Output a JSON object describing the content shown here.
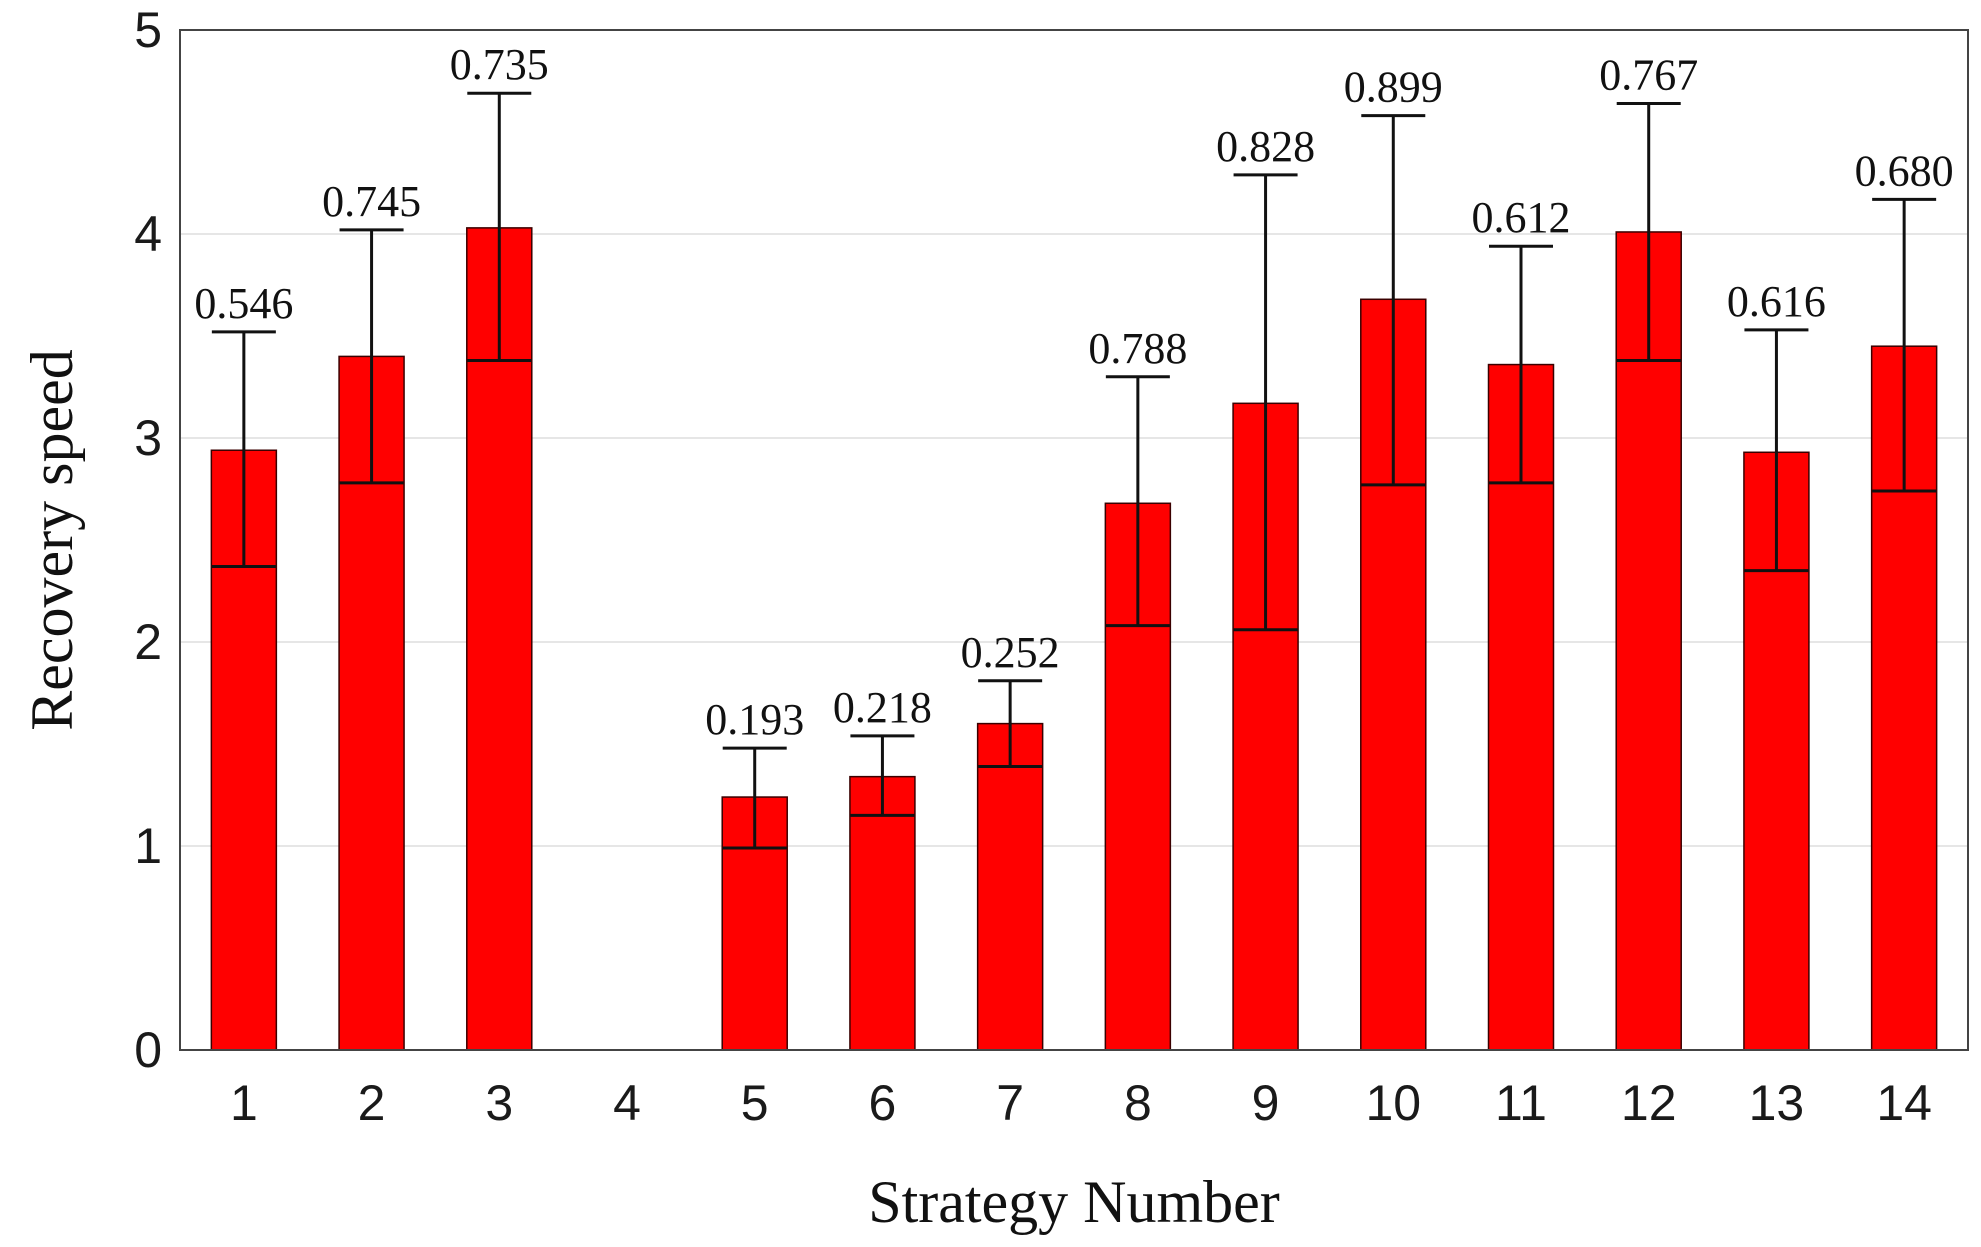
{
  "chart_data": {
    "type": "bar",
    "title": "",
    "xlabel": "Strategy Number",
    "ylabel": "Recovery speed",
    "categories": [
      "1",
      "2",
      "3",
      "4",
      "5",
      "6",
      "7",
      "8",
      "9",
      "10",
      "11",
      "12",
      "13",
      "14"
    ],
    "values": [
      2.94,
      3.4,
      4.03,
      0,
      1.24,
      1.34,
      1.6,
      2.68,
      3.17,
      3.68,
      3.36,
      4.01,
      2.93,
      3.45
    ],
    "error_bars": [
      [
        2.37,
        3.52
      ],
      [
        2.78,
        4.02
      ],
      [
        3.38,
        4.69
      ],
      null,
      [
        0.99,
        1.48
      ],
      [
        1.15,
        1.54
      ],
      [
        1.39,
        1.81
      ],
      [
        2.08,
        3.3
      ],
      [
        2.06,
        4.29
      ],
      [
        2.77,
        4.58
      ],
      [
        2.78,
        3.94
      ],
      [
        3.38,
        4.64
      ],
      [
        2.35,
        3.53
      ],
      [
        2.74,
        4.17
      ]
    ],
    "data_labels": [
      "0.546",
      "0.745",
      "0.735",
      "",
      "0.193",
      "0.218",
      "0.252",
      "0.788",
      "0.828",
      "0.899",
      "0.612",
      "0.767",
      "0.616",
      "0.680"
    ],
    "ylim": [
      0,
      5
    ],
    "yticks": [
      "0",
      "1",
      "2",
      "3",
      "4",
      "5"
    ],
    "grid": "horizontal",
    "colors": {
      "bar": "#ff0000",
      "bar_edge": "#3a0000",
      "error_bar": "#111111",
      "grid": "#e6e6e6",
      "frame": "#444444"
    }
  }
}
